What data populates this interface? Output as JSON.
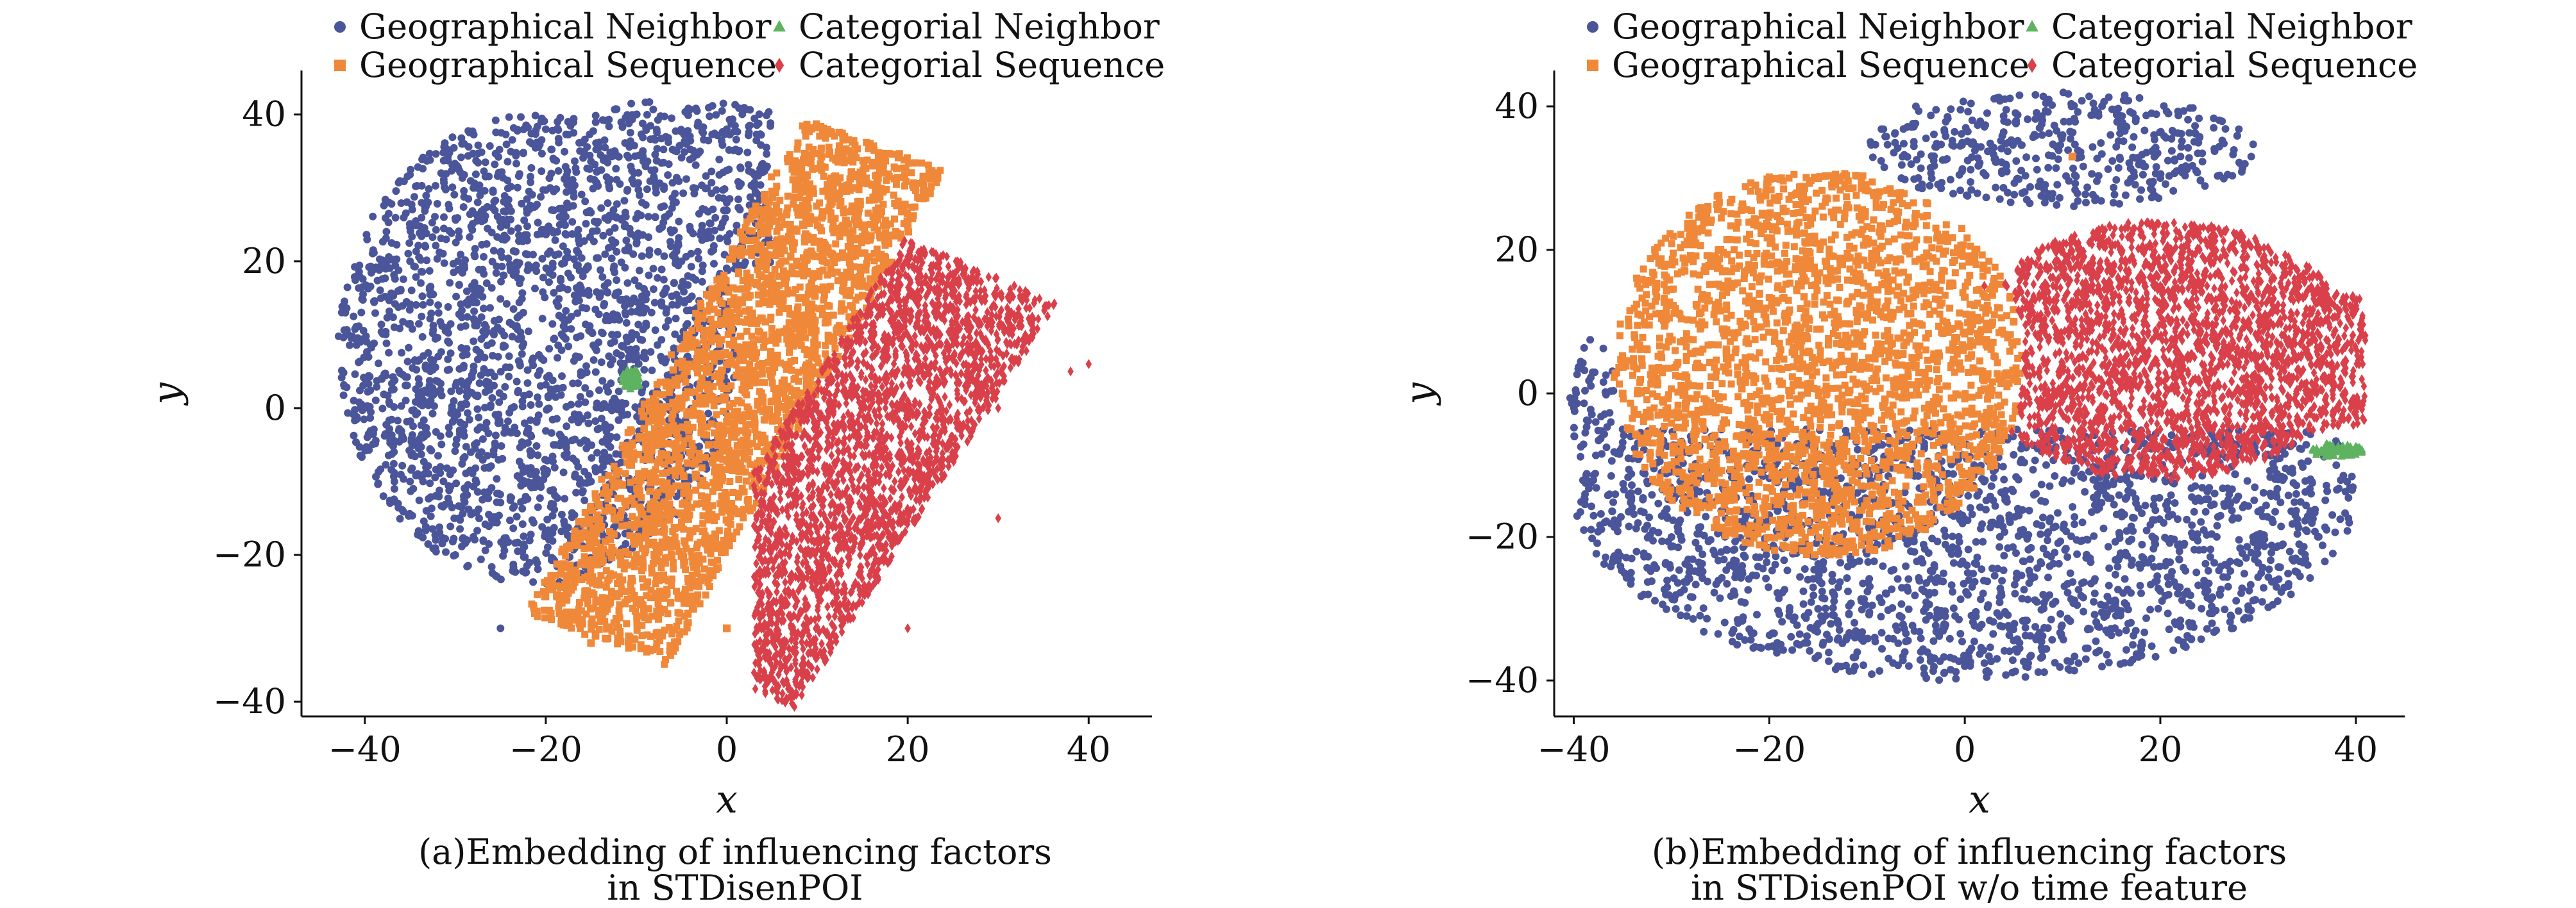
{
  "chart_data": [
    {
      "type": "scatter",
      "title": "",
      "caption_line1": "(a)Embedding of influencing factors",
      "caption_line2": "in STDisenPOI",
      "xlabel": "x",
      "ylabel": "y",
      "xlim": [
        -47,
        47
      ],
      "ylim": [
        -42,
        46
      ],
      "xticks": [
        -40,
        -20,
        0,
        20,
        40
      ],
      "yticks": [
        -40,
        -20,
        0,
        20,
        40
      ],
      "tick_labels_x": [
        "−40",
        "−20",
        "0",
        "20",
        "40"
      ],
      "tick_labels_y": [
        "−40",
        "−20",
        "0",
        "20",
        "40"
      ],
      "legend": [
        {
          "label": "Geographical Neighbor",
          "marker": "circle",
          "color": "#4b5599"
        },
        {
          "label": "Categorial Neighbor",
          "marker": "triangle",
          "color": "#5fb25f"
        },
        {
          "label": "Geographical Sequence",
          "marker": "square",
          "color": "#f0883a"
        },
        {
          "label": "Categorial Sequence",
          "marker": "diamond",
          "color": "#d9404a"
        }
      ],
      "series": [
        {
          "name": "Geographical Neighbor",
          "region": "circle centered (-21,10) radius ~22, left/upper region",
          "points": [
            [
              -40,
              4
            ],
            [
              -35,
              20
            ],
            [
              -28,
              30
            ],
            [
              -20,
              38
            ],
            [
              -10,
              40
            ],
            [
              0,
              38
            ],
            [
              -30,
              -20
            ],
            [
              -25,
              -30
            ],
            [
              -15,
              -10
            ],
            [
              -5,
              20
            ],
            [
              -10,
              10
            ],
            [
              -35,
              -10
            ]
          ]
        },
        {
          "name": "Geographical Sequence",
          "region": "diagonal band from (-15,-32) to (15,35)",
          "points": [
            [
              -15,
              -32
            ],
            [
              -8,
              -20
            ],
            [
              -2,
              -5
            ],
            [
              3,
              5
            ],
            [
              8,
              15
            ],
            [
              14,
              30
            ],
            [
              13,
              37
            ],
            [
              20,
              25
            ],
            [
              0,
              -30
            ],
            [
              -18,
              -28
            ]
          ]
        },
        {
          "name": "Categorial Sequence",
          "region": "lower-right band from (5,-38) to (40,10)",
          "points": [
            [
              5,
              -36
            ],
            [
              15,
              -25
            ],
            [
              22,
              -10
            ],
            [
              30,
              0
            ],
            [
              33,
              10
            ],
            [
              40,
              6
            ],
            [
              20,
              -30
            ],
            [
              30,
              -15
            ],
            [
              38,
              5
            ]
          ]
        },
        {
          "name": "Categorial Neighbor",
          "region": "small cluster near (-11,4)",
          "points": [
            [
              -11,
              3
            ],
            [
              -10,
              5
            ],
            [
              -11,
              4
            ],
            [
              -10,
              3
            ]
          ]
        }
      ]
    },
    {
      "type": "scatter",
      "title": "",
      "caption_line1": "(b)Embedding of influencing factors",
      "caption_line2": "in STDisenPOI w/o time feature",
      "xlabel": "x",
      "ylabel": "y",
      "xlim": [
        -42,
        45
      ],
      "ylim": [
        -45,
        45
      ],
      "xticks": [
        -40,
        -20,
        0,
        20,
        40
      ],
      "yticks": [
        -40,
        -20,
        0,
        20,
        40
      ],
      "tick_labels_x": [
        "−40",
        "−20",
        "0",
        "20",
        "40"
      ],
      "tick_labels_y": [
        "−40",
        "−20",
        "0",
        "20",
        "40"
      ],
      "legend": [
        {
          "label": "Geographical Neighbor",
          "marker": "circle",
          "color": "#4b5599"
        },
        {
          "label": "Categorial Neighbor",
          "marker": "triangle",
          "color": "#5fb25f"
        },
        {
          "label": "Geographical Sequence",
          "marker": "square",
          "color": "#f0883a"
        },
        {
          "label": "Categorial Sequence",
          "marker": "diamond",
          "color": "#d9404a"
        }
      ],
      "series": [
        {
          "name": "Geographical Neighbor",
          "region": "lower ellipse plus top strip",
          "points": [
            [
              -30,
              -20
            ],
            [
              -15,
              -30
            ],
            [
              0,
              -38
            ],
            [
              15,
              -30
            ],
            [
              30,
              -20
            ],
            [
              10,
              36
            ],
            [
              20,
              30
            ],
            [
              -5,
              40
            ],
            [
              -35,
              -5
            ],
            [
              38,
              -10
            ]
          ]
        },
        {
          "name": "Geographical Sequence",
          "region": "left-center ellipse centered (-15,5)",
          "points": [
            [
              -35,
              0
            ],
            [
              -25,
              20
            ],
            [
              -15,
              30
            ],
            [
              -5,
              25
            ],
            [
              5,
              10
            ],
            [
              3,
              -10
            ],
            [
              -10,
              -15
            ],
            [
              -30,
              -10
            ],
            [
              11,
              33
            ]
          ]
        },
        {
          "name": "Categorial Sequence",
          "region": "right-center band centered (20,5)",
          "points": [
            [
              2,
              15
            ],
            [
              10,
              20
            ],
            [
              20,
              15
            ],
            [
              30,
              10
            ],
            [
              36,
              0
            ],
            [
              40,
              -3
            ],
            [
              10,
              0
            ],
            [
              20,
              -5
            ],
            [
              30,
              5
            ]
          ]
        },
        {
          "name": "Categorial Neighbor",
          "region": "small cluster near (38,-8)",
          "points": [
            [
              36,
              -8
            ],
            [
              38,
              -8
            ],
            [
              40,
              -8
            ],
            [
              37,
              -7
            ]
          ]
        }
      ]
    }
  ]
}
